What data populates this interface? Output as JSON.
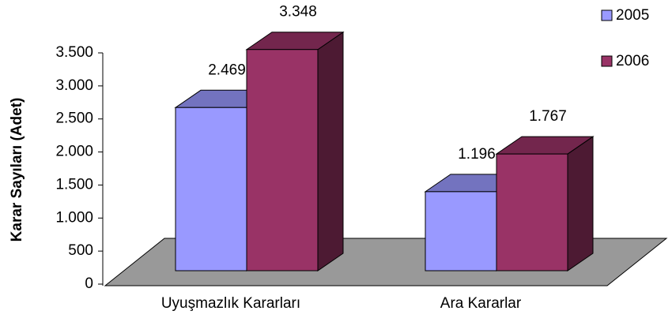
{
  "chart_data": {
    "type": "bar3d",
    "y_label": "Karar Sayıları (Adet)",
    "categories": [
      "Uyuşmazlık Kararları",
      "Ara Kararlar"
    ],
    "series": [
      {
        "name": "2005",
        "color": "#9999ff",
        "values": [
          2469,
          1196
        ],
        "value_labels": [
          "2.469",
          "1.196"
        ]
      },
      {
        "name": "2006",
        "color": "#993366",
        "values": [
          3348,
          1767
        ],
        "value_labels": [
          "3.348",
          "1.767"
        ]
      }
    ],
    "ylim": [
      0,
      3500
    ],
    "yticks": [
      0,
      500,
      {
        "value": 1000,
        "label": "1.000"
      },
      {
        "value": 1500,
        "label": "1.500"
      },
      {
        "value": 2000,
        "label": "2.000"
      },
      {
        "value": 2500,
        "label": "2.500"
      },
      {
        "value": 3000,
        "label": "3.000"
      },
      {
        "value": 3500,
        "label": "3.500"
      }
    ],
    "legend": "top-right"
  }
}
